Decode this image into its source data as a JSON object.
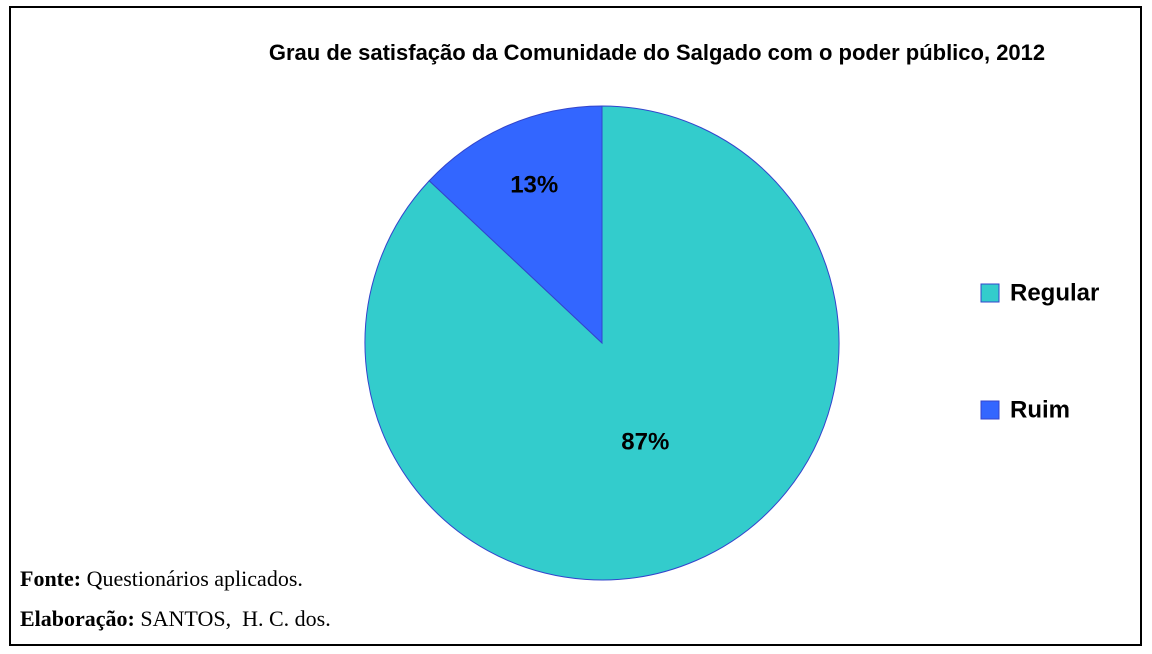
{
  "chart_data": {
    "type": "pie",
    "title": "Grau de satisfação da Comunidade do Salgado com o poder público, 2012",
    "categories": [
      "Regular",
      "Ruim"
    ],
    "values": [
      87,
      13
    ],
    "value_labels": [
      "87%",
      "13%"
    ],
    "colors": [
      "#33CCCC",
      "#3366FF"
    ],
    "legend": "right"
  },
  "notes": [
    {
      "label": "Fonte:",
      "text": "Questionários aplicados."
    },
    {
      "label": "Elaboração:",
      "text": "SANTOS,  H. C. dos."
    }
  ]
}
